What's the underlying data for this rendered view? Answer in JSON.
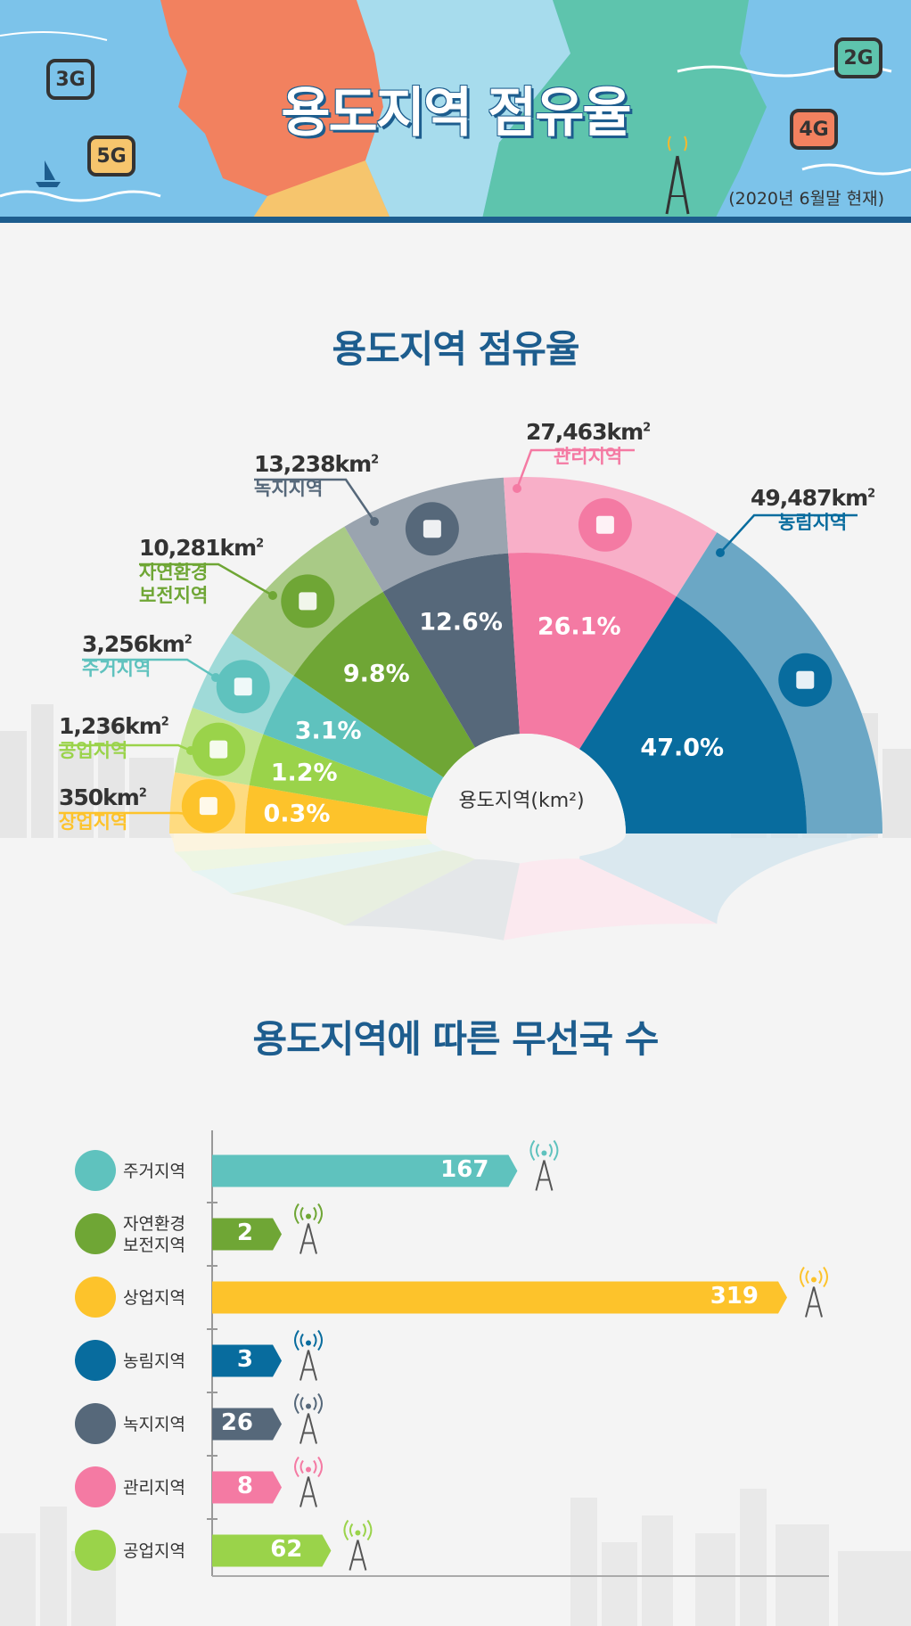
{
  "banner": {
    "title": "용도지역 점유율",
    "date_note": "(2020년 6월말 현재)",
    "network_badges": [
      "3G",
      "5G",
      "2G",
      "4G"
    ]
  },
  "chart_data": [
    {
      "type": "pie",
      "title": "용도지역 점유율",
      "center_label": "용도지역(km²)",
      "slices": [
        {
          "name": "상업지역",
          "area": "350km",
          "area_sup": "2",
          "percent": 0.3,
          "percent_label": "0.3%",
          "color": "#fdc32b"
        },
        {
          "name": "공업지역",
          "area": "1,236km",
          "area_sup": "2",
          "percent": 1.2,
          "percent_label": "1.2%",
          "color": "#9ad34a"
        },
        {
          "name": "주거지역",
          "area": "3,256km",
          "area_sup": "2",
          "percent": 3.1,
          "percent_label": "3.1%",
          "color": "#5fc2be"
        },
        {
          "name": "자연환경\n보전지역",
          "name_lines": [
            "자연환경",
            "보전지역"
          ],
          "area": "10,281km",
          "area_sup": "2",
          "percent": 9.8,
          "percent_label": "9.8%",
          "color": "#6fa635"
        },
        {
          "name": "녹지지역",
          "area": "13,238km",
          "area_sup": "2",
          "percent": 12.6,
          "percent_label": "12.6%",
          "color": "#56687a"
        },
        {
          "name": "관리지역",
          "area": "27,463km",
          "area_sup": "2",
          "percent": 26.1,
          "percent_label": "26.1%",
          "color": "#f47aa3"
        },
        {
          "name": "농림지역",
          "area": "49,487km",
          "area_sup": "2",
          "percent": 47.0,
          "percent_label": "47.0%",
          "color": "#086c9e"
        }
      ]
    },
    {
      "type": "bar",
      "title": "용도지역에 따른 무선국 수",
      "categories": [
        "주거지역",
        "자연환경\n보전지역",
        "상업지역",
        "농림지역",
        "녹지지역",
        "관리지역",
        "공업지역"
      ],
      "category_lines": [
        [
          "주거지역"
        ],
        [
          "자연환경",
          "보전지역"
        ],
        [
          "상업지역"
        ],
        [
          "농림지역"
        ],
        [
          "녹지지역"
        ],
        [
          "관리지역"
        ],
        [
          "공업지역"
        ]
      ],
      "values": [
        167,
        2,
        319,
        3,
        26,
        8,
        62
      ],
      "value_labels": [
        "167",
        "2",
        "319",
        "3",
        "26",
        "8",
        "62"
      ],
      "colors": [
        "#5fc2be",
        "#6fa635",
        "#fdc32b",
        "#086c9e",
        "#56687a",
        "#f47aa3",
        "#9ad34a"
      ],
      "icons": [
        "house-icon",
        "mountain-icon",
        "building-icon",
        "tractor-icon",
        "tree-icon",
        "magnifier-icon",
        "factory-icon"
      ]
    }
  ]
}
